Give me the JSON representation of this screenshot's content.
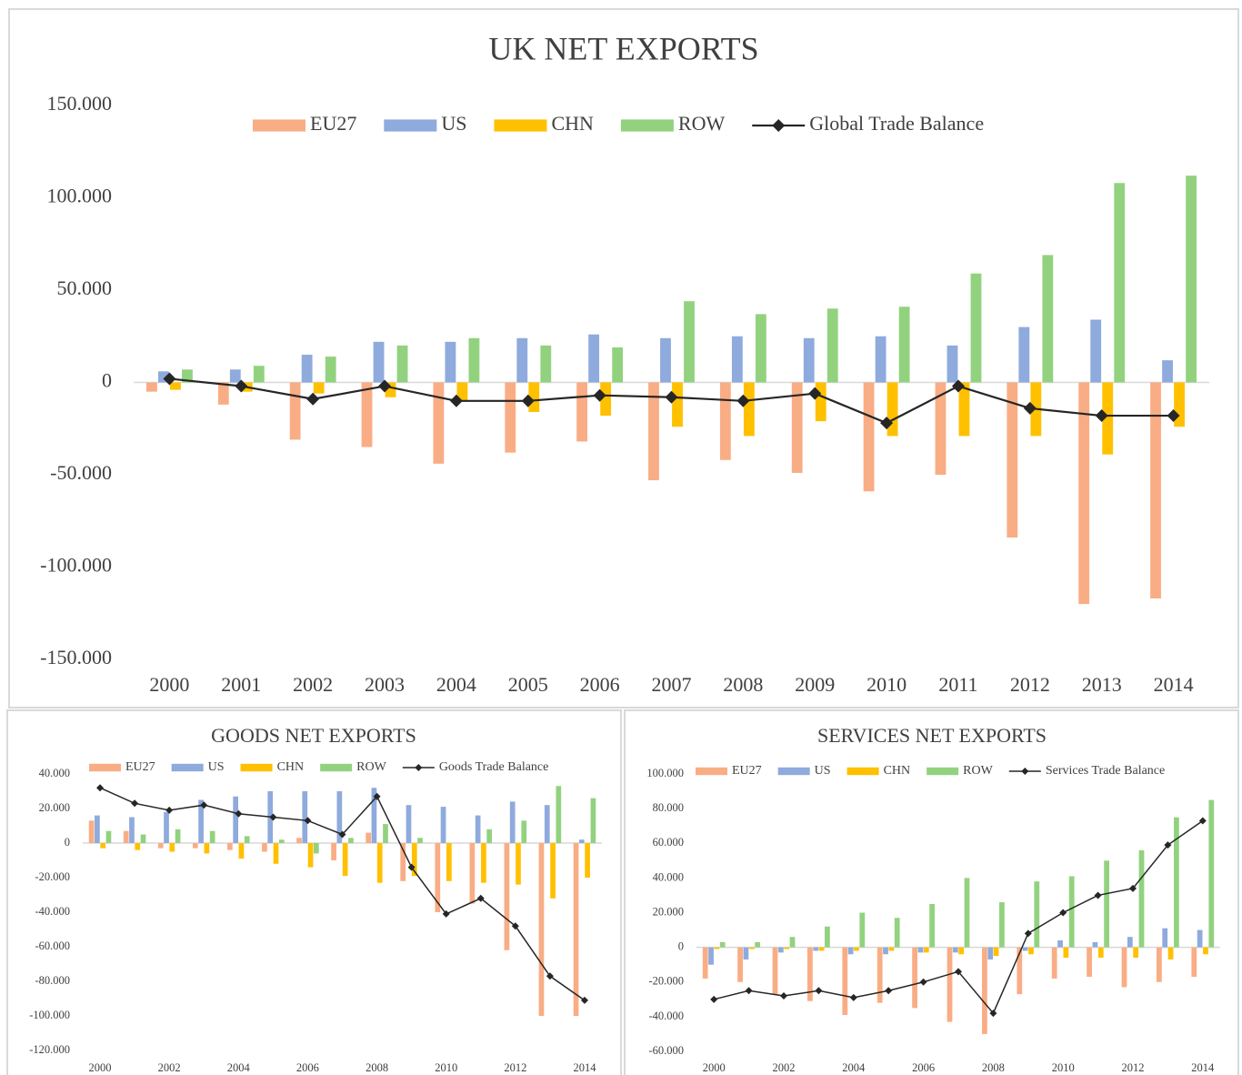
{
  "chart_data": [
    {
      "type": "bar",
      "title": "UK NET EXPORTS",
      "categories": [
        "2000",
        "2001",
        "2002",
        "2003",
        "2004",
        "2005",
        "2006",
        "2007",
        "2008",
        "2009",
        "2010",
        "2011",
        "2012",
        "2013",
        "2014"
      ],
      "ylim": [
        -150000,
        150000
      ],
      "yticks": [
        {
          "value": -150000,
          "label": "-150.000"
        },
        {
          "value": -100000,
          "label": "-100.000"
        },
        {
          "value": -50000,
          "label": "-50.000"
        },
        0,
        {
          "value": 50000,
          "label": "50.000"
        },
        {
          "value": 100000,
          "label": "100.000"
        },
        {
          "value": 150000,
          "label": "150.000"
        }
      ],
      "grid": false,
      "series": [
        {
          "name": "EU27",
          "color": "#f9ad85",
          "values": [
            -5000,
            -12000,
            -31000,
            -35000,
            -44000,
            -38000,
            -32000,
            -53000,
            -42000,
            -49000,
            -59000,
            -50000,
            -84000,
            -120000,
            -117000
          ]
        },
        {
          "name": "US",
          "color": "#8faadc",
          "values": [
            6000,
            7000,
            15000,
            22000,
            22000,
            24000,
            26000,
            24000,
            25000,
            24000,
            25000,
            20000,
            30000,
            34000,
            12000
          ]
        },
        {
          "name": "CHN",
          "color": "#ffc000",
          "values": [
            -4000,
            -5000,
            -6000,
            -8000,
            -10000,
            -16000,
            -18000,
            -24000,
            -29000,
            -21000,
            -29000,
            -29000,
            -29000,
            -39000,
            -24000
          ]
        },
        {
          "name": "ROW",
          "color": "#92d27f",
          "values": [
            7000,
            9000,
            14000,
            20000,
            24000,
            20000,
            19000,
            44000,
            37000,
            40000,
            41000,
            59000,
            69000,
            108000,
            112000
          ]
        },
        {
          "name": "Global Trade Balance",
          "color": "#262626",
          "type": "line",
          "values": [
            2000,
            -2000,
            -9000,
            -2000,
            -10000,
            -10000,
            -7000,
            -8000,
            -10000,
            -6000,
            -22000,
            -2000,
            -14000,
            -18000,
            -18000
          ]
        }
      ]
    },
    {
      "type": "bar",
      "title": "GOODS NET EXPORTS",
      "categories": [
        "2000",
        null,
        "2002",
        null,
        "2004",
        null,
        "2006",
        null,
        "2008",
        null,
        "2010",
        null,
        "2012",
        null,
        "2014"
      ],
      "ylim": [
        -120000,
        40000
      ],
      "yticks": [
        {
          "value": -120000,
          "label": "-120.000"
        },
        {
          "value": -100000,
          "label": "-100.000"
        },
        {
          "value": -80000,
          "label": "-80.000"
        },
        {
          "value": -60000,
          "label": "-60.000"
        },
        {
          "value": -40000,
          "label": "-40.000"
        },
        {
          "value": -20000,
          "label": "-20.000"
        },
        0,
        {
          "value": 20000,
          "label": "20.000"
        },
        {
          "value": 40000,
          "label": "40.000"
        }
      ],
      "grid": false,
      "series": [
        {
          "name": "EU27",
          "color": "#f9ad85",
          "values": [
            13000,
            7000,
            -3000,
            -3000,
            -4000,
            -5000,
            3000,
            -10000,
            6000,
            -22000,
            -40000,
            -35000,
            -62000,
            -100000,
            -100000
          ]
        },
        {
          "name": "US",
          "color": "#8faadc",
          "values": [
            16000,
            15000,
            18000,
            25000,
            27000,
            30000,
            30000,
            30000,
            32000,
            22000,
            21000,
            16000,
            24000,
            22000,
            2000
          ]
        },
        {
          "name": "CHN",
          "color": "#ffc000",
          "values": [
            -3000,
            -4000,
            -5000,
            -6000,
            -9000,
            -12000,
            -14000,
            -19000,
            -23000,
            -19000,
            -22000,
            -23000,
            -24000,
            -32000,
            -20000
          ]
        },
        {
          "name": "ROW",
          "color": "#92d27f",
          "values": [
            7000,
            5000,
            8000,
            7000,
            4000,
            2000,
            -6000,
            3000,
            11000,
            3000,
            0,
            8000,
            13000,
            33000,
            26000
          ]
        },
        {
          "name": "Goods Trade Balance",
          "color": "#262626",
          "type": "line",
          "values": [
            32000,
            23000,
            19000,
            22000,
            17000,
            15000,
            13000,
            5000,
            27000,
            -14000,
            -41000,
            -32000,
            -48000,
            -77000,
            -91000
          ]
        }
      ]
    },
    {
      "type": "bar",
      "title": "SERVICES NET EXPORTS",
      "categories": [
        "2000",
        null,
        "2002",
        null,
        "2004",
        null,
        "2006",
        null,
        "2008",
        null,
        "2010",
        null,
        "2012",
        null,
        "2014"
      ],
      "ylim": [
        -60000,
        100000
      ],
      "yticks": [
        {
          "value": -60000,
          "label": "-60.000"
        },
        {
          "value": -40000,
          "label": "-40.000"
        },
        {
          "value": -20000,
          "label": "-20.000"
        },
        0,
        {
          "value": 20000,
          "label": "20.000"
        },
        {
          "value": 40000,
          "label": "40.000"
        },
        {
          "value": 60000,
          "label": "60.000"
        },
        {
          "value": 80000,
          "label": "80.000"
        },
        {
          "value": 100000,
          "label": "100.000"
        }
      ],
      "grid": false,
      "series": [
        {
          "name": "EU27",
          "color": "#f9ad85",
          "values": [
            -18000,
            -20000,
            -27000,
            -31000,
            -39000,
            -32000,
            -35000,
            -43000,
            -50000,
            -27000,
            -18000,
            -17000,
            -23000,
            -20000,
            -17000
          ]
        },
        {
          "name": "US",
          "color": "#8faadc",
          "values": [
            -10000,
            -7000,
            -3000,
            -2000,
            -4000,
            -4000,
            -3000,
            -3000,
            -7000,
            -2000,
            4000,
            3000,
            6000,
            11000,
            10000
          ]
        },
        {
          "name": "CHN",
          "color": "#ffc000",
          "values": [
            -1000,
            -1000,
            -1000,
            -2000,
            -2000,
            -2000,
            -3000,
            -4000,
            -5000,
            -4000,
            -6000,
            -6000,
            -6000,
            -7000,
            -4000
          ]
        },
        {
          "name": "ROW",
          "color": "#92d27f",
          "values": [
            3000,
            3000,
            6000,
            12000,
            20000,
            17000,
            25000,
            40000,
            26000,
            38000,
            41000,
            50000,
            56000,
            75000,
            85000
          ]
        },
        {
          "name": "Services Trade Balance",
          "color": "#262626",
          "type": "line",
          "values": [
            -30000,
            -25000,
            -28000,
            -25000,
            -29000,
            -25000,
            -20000,
            -14000,
            -38000,
            8000,
            20000,
            30000,
            34000,
            59000,
            73000
          ]
        }
      ]
    }
  ]
}
